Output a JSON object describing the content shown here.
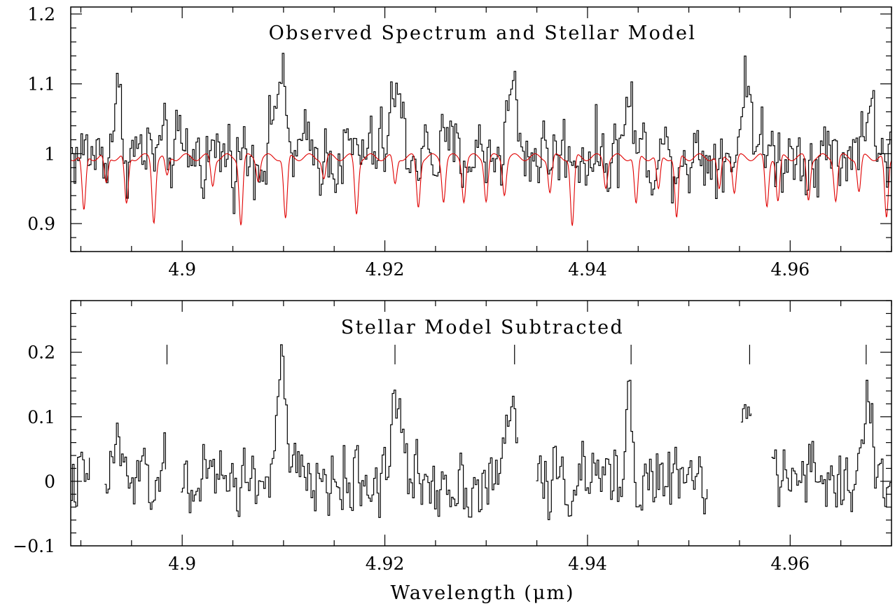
{
  "chart_data": [
    {
      "type": "line",
      "title": "Observed Spectrum and Stellar Model",
      "xlabel": "",
      "ylabel": "",
      "xlim": [
        4.889,
        4.97
      ],
      "ylim": [
        0.86,
        1.21
      ],
      "x_ticks": [
        4.9,
        4.92,
        4.94,
        4.96
      ],
      "x_tick_labels": [
        "4.9",
        "4.92",
        "4.94",
        "4.96"
      ],
      "y_ticks": [
        0.9,
        1.0,
        1.1,
        1.2
      ],
      "y_tick_labels": [
        "0.9",
        "1",
        "1.1",
        "1.2"
      ],
      "grid": false,
      "series": [
        {
          "color": "#000000",
          "style": "step",
          "x_start": 4.889,
          "x_end": 4.97,
          "n_points": 486,
          "baseline": 1.0,
          "noise": 0.045,
          "features": [
            {
              "center": 4.8935,
              "amplitude": 0.08,
              "width": 0.0004
            },
            {
              "center": 4.9095,
              "amplitude": 0.11,
              "width": 0.0005
            },
            {
              "center": 4.921,
              "amplitude": 0.09,
              "width": 0.0005
            },
            {
              "center": 4.9325,
              "amplitude": 0.09,
              "width": 0.0005
            },
            {
              "center": 4.944,
              "amplitude": 0.08,
              "width": 0.0004
            },
            {
              "center": 4.9557,
              "amplitude": 0.11,
              "width": 0.0005
            },
            {
              "center": 4.9675,
              "amplitude": 0.07,
              "width": 0.0005
            }
          ]
        },
        {
          "color": "#e00000",
          "style": "line",
          "x_start": 4.889,
          "x_end": 4.97,
          "n_points": 1400,
          "baseline": 1.0,
          "absorption_lines": [
            {
              "center": 4.8903,
              "depth": 0.08
            },
            {
              "center": 4.8925,
              "depth": 0.04
            },
            {
              "center": 4.8945,
              "depth": 0.07
            },
            {
              "center": 4.8972,
              "depth": 0.09
            },
            {
              "center": 4.8985,
              "depth": 0.03
            },
            {
              "center": 4.903,
              "depth": 0.04
            },
            {
              "center": 4.9058,
              "depth": 0.095
            },
            {
              "center": 4.9075,
              "depth": 0.03
            },
            {
              "center": 4.9102,
              "depth": 0.09
            },
            {
              "center": 4.914,
              "depth": 0.03
            },
            {
              "center": 4.9172,
              "depth": 0.08
            },
            {
              "center": 4.921,
              "depth": 0.04
            },
            {
              "center": 4.9233,
              "depth": 0.07
            },
            {
              "center": 4.9258,
              "depth": 0.06
            },
            {
              "center": 4.9278,
              "depth": 0.06
            },
            {
              "center": 4.93,
              "depth": 0.06
            },
            {
              "center": 4.9318,
              "depth": 0.05
            },
            {
              "center": 4.9363,
              "depth": 0.05
            },
            {
              "center": 4.9385,
              "depth": 0.1
            },
            {
              "center": 4.9418,
              "depth": 0.04
            },
            {
              "center": 4.9448,
              "depth": 0.07
            },
            {
              "center": 4.947,
              "depth": 0.05
            },
            {
              "center": 4.9488,
              "depth": 0.09
            },
            {
              "center": 4.953,
              "depth": 0.05
            },
            {
              "center": 4.9545,
              "depth": 0.05
            },
            {
              "center": 4.9577,
              "depth": 0.07
            },
            {
              "center": 4.9588,
              "depth": 0.065
            },
            {
              "center": 4.9618,
              "depth": 0.06
            },
            {
              "center": 4.9645,
              "depth": 0.06
            },
            {
              "center": 4.9668,
              "depth": 0.05
            },
            {
              "center": 4.9695,
              "depth": 0.09
            }
          ]
        }
      ]
    },
    {
      "type": "line",
      "title": "Stellar Model Subtracted",
      "xlabel": "Wavelength (μm)",
      "ylabel": "",
      "xlim": [
        4.889,
        4.97
      ],
      "ylim": [
        -0.1,
        0.28
      ],
      "x_ticks": [
        4.9,
        4.92,
        4.94,
        4.96
      ],
      "x_tick_labels": [
        "4.9",
        "4.92",
        "4.94",
        "4.96"
      ],
      "y_ticks": [
        -0.1,
        0.0,
        0.1,
        0.2
      ],
      "y_tick_labels": [
        "−0.1",
        "0",
        "0.1",
        "0.2"
      ],
      "grid": false,
      "line_markers": [
        4.8985,
        4.921,
        4.9328,
        4.9443,
        4.956,
        4.9675
      ],
      "series": [
        {
          "color": "#000000",
          "style": "step",
          "x_start": 4.889,
          "x_end": 4.97,
          "n_points": 486,
          "baseline": 0.0,
          "noise": 0.045,
          "gaps": [
            [
              4.891,
              4.8923
            ],
            [
              4.8985,
              4.8997
            ],
            [
              4.9332,
              4.9349
            ],
            [
              4.9518,
              4.955
            ],
            [
              4.9562,
              4.958
            ]
          ],
          "features": [
            {
              "center": 4.8935,
              "amplitude": 0.06,
              "width": 0.0004
            },
            {
              "center": 4.9097,
              "amplitude": 0.16,
              "width": 0.0005
            },
            {
              "center": 4.921,
              "amplitude": 0.13,
              "width": 0.0005
            },
            {
              "center": 4.9325,
              "amplitude": 0.12,
              "width": 0.0005
            },
            {
              "center": 4.944,
              "amplitude": 0.12,
              "width": 0.0004
            },
            {
              "center": 4.9557,
              "amplitude": 0.16,
              "width": 0.0005
            },
            {
              "center": 4.9675,
              "amplitude": 0.11,
              "width": 0.0005
            }
          ]
        }
      ]
    }
  ]
}
